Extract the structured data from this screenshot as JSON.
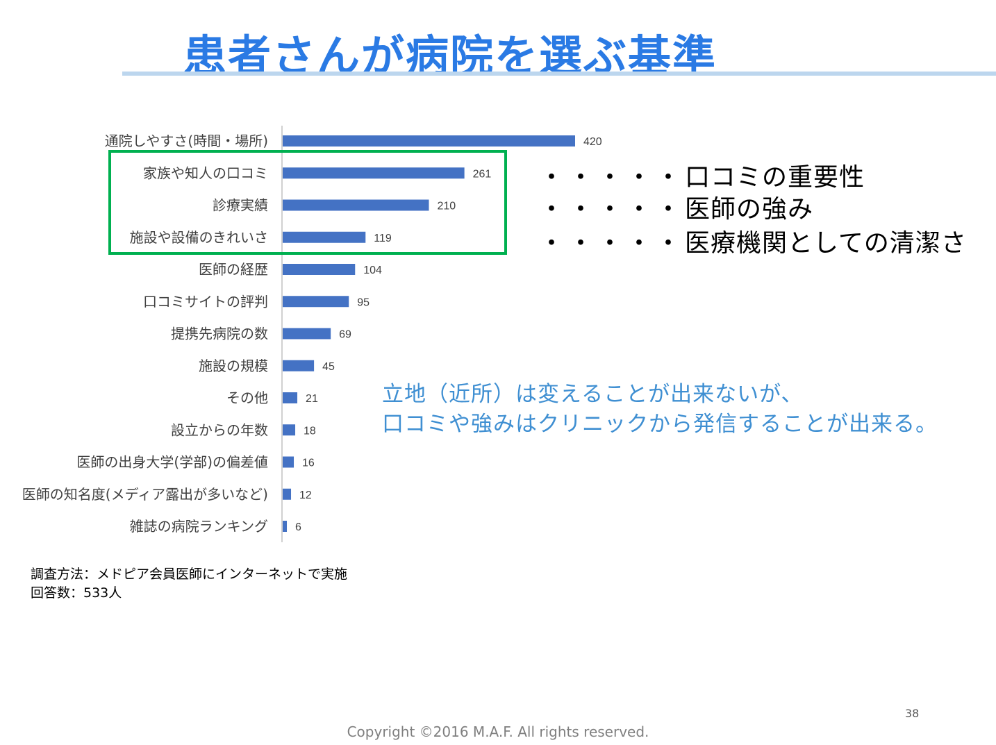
{
  "slide": {
    "title": "患者さんが病院を選ぶ基準",
    "page_number": "38",
    "copyright": "Copyright ©2016 M.A.F.   All rights reserved."
  },
  "notes": [
    {
      "dots": "・・・・・",
      "text": "口コミの重要性"
    },
    {
      "dots": "・・・・・",
      "text": "医師の強み"
    },
    {
      "dots": "・・・・・",
      "text": "医療機関としての清潔さ"
    }
  ],
  "callout": {
    "line1": "立地（近所）は変えることが出来ないが、",
    "line2": "口コミや強みはクリニックから発信することが出来る。"
  },
  "survey": {
    "method": "調査方法：メドピア会員医師にインターネットで実施",
    "respondents": "回答数：533人"
  },
  "colors": {
    "bar": "#4472c4",
    "highlight_border": "#00b050",
    "title": "#2a7ae4",
    "callout": "#3f8fd2"
  },
  "chart_data": {
    "type": "bar",
    "orientation": "horizontal",
    "categories": [
      "通院しやすさ(時間・場所)",
      "家族や知人の口コミ",
      "診療実績",
      "施設や設備のきれいさ",
      "医師の経歴",
      "口コミサイトの評判",
      "提携先病院の数",
      "施設の規模",
      "その他",
      "設立からの年数",
      "医師の出身大学(学部)の偏差値",
      "医師の知名度(メディア露出が多いなど)",
      "雑誌の病院ランキング"
    ],
    "values": [
      420,
      261,
      210,
      119,
      104,
      95,
      69,
      45,
      21,
      18,
      16,
      12,
      6
    ],
    "highlighted_categories": [
      "家族や知人の口コミ",
      "診療実績",
      "施設や設備のきれいさ"
    ],
    "data_labels": true,
    "grid": false,
    "legend": "none"
  }
}
